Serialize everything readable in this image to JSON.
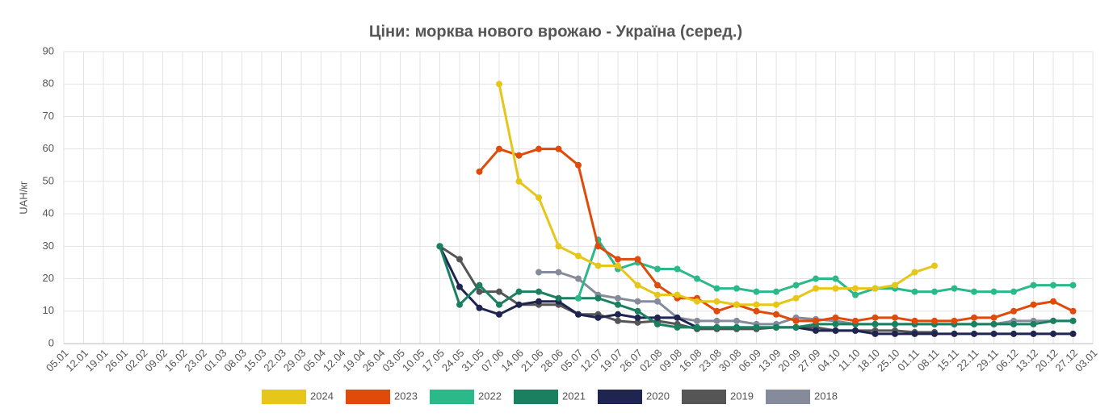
{
  "chart_data": {
    "type": "line",
    "title": "Ціни: морква нового врожаю - Україна (серед.)",
    "y_label": "UAH/кг",
    "categories": [
      "05.01",
      "12.01",
      "19.01",
      "26.01",
      "02.02",
      "09.02",
      "16.02",
      "23.02",
      "01.03",
      "08.03",
      "15.03",
      "22.03",
      "29.03",
      "05.04",
      "12.04",
      "19.04",
      "26.04",
      "03.05",
      "10.05",
      "17.05",
      "24.05",
      "31.05",
      "07.06",
      "14.06",
      "21.06",
      "28.06",
      "05.07",
      "12.07",
      "19.07",
      "26.07",
      "02.08",
      "09.08",
      "16.08",
      "23.08",
      "30.08",
      "06.09",
      "13.09",
      "20.09",
      "27.09",
      "04.10",
      "11.10",
      "18.10",
      "25.10",
      "01.11",
      "08.11",
      "15.11",
      "22.11",
      "29.11",
      "06.12",
      "13.12",
      "20.12",
      "27.12",
      "03.01"
    ],
    "series": [
      {
        "name": "2024",
        "color": "#e6c619",
        "values": [
          null,
          null,
          null,
          null,
          null,
          null,
          null,
          null,
          null,
          null,
          null,
          null,
          null,
          null,
          null,
          null,
          null,
          null,
          null,
          null,
          null,
          null,
          80,
          50,
          45,
          30,
          27,
          24,
          24,
          18,
          15,
          15,
          13,
          13,
          12,
          12,
          12,
          14,
          17,
          17,
          17,
          17,
          18,
          22,
          24,
          null,
          null,
          null,
          null,
          null,
          null,
          null,
          null
        ]
      },
      {
        "name": "2023",
        "color": "#e04a0a",
        "values": [
          null,
          null,
          null,
          null,
          null,
          null,
          null,
          null,
          null,
          null,
          null,
          null,
          null,
          null,
          null,
          null,
          null,
          null,
          null,
          null,
          null,
          53,
          60,
          58,
          60,
          60,
          55,
          30,
          26,
          26,
          18,
          14,
          14,
          10,
          12,
          10,
          9,
          7,
          7,
          8,
          7,
          8,
          8,
          7,
          7,
          7,
          8,
          8,
          10,
          12,
          13,
          10,
          null
        ]
      },
      {
        "name": "2022",
        "color": "#2bb98a",
        "values": [
          null,
          null,
          null,
          null,
          null,
          null,
          null,
          null,
          null,
          null,
          null,
          null,
          null,
          null,
          null,
          null,
          null,
          null,
          null,
          null,
          null,
          null,
          null,
          null,
          null,
          null,
          14,
          32,
          23,
          25,
          23,
          23,
          20,
          17,
          17,
          16,
          16,
          18,
          20,
          20,
          15,
          17,
          17,
          16,
          16,
          17,
          16,
          16,
          16,
          18,
          18,
          18,
          null
        ]
      },
      {
        "name": "2021",
        "color": "#1a8060",
        "values": [
          null,
          null,
          null,
          null,
          null,
          null,
          null,
          null,
          null,
          null,
          null,
          null,
          null,
          null,
          null,
          null,
          null,
          null,
          null,
          30,
          12,
          18,
          12,
          16,
          16,
          14,
          14,
          14,
          12,
          10,
          6,
          5,
          5,
          5,
          5,
          5,
          5,
          5,
          6,
          6,
          6,
          6,
          6,
          6,
          6,
          6,
          6,
          6,
          6,
          6,
          7,
          7,
          null
        ]
      },
      {
        "name": "2020",
        "color": "#1f2550",
        "values": [
          null,
          null,
          null,
          null,
          null,
          null,
          null,
          null,
          null,
          null,
          null,
          null,
          null,
          null,
          null,
          null,
          null,
          null,
          null,
          30,
          17.5,
          11,
          9,
          12,
          13,
          13,
          9,
          8,
          9,
          8,
          8,
          8,
          5,
          5,
          5,
          5,
          5,
          5,
          4,
          4,
          4,
          3,
          3,
          3,
          3,
          3,
          3,
          3,
          3,
          3,
          3,
          3,
          null
        ]
      },
      {
        "name": "2019",
        "color": "#555555",
        "values": [
          null,
          null,
          null,
          null,
          null,
          null,
          null,
          null,
          null,
          null,
          null,
          null,
          null,
          null,
          null,
          null,
          null,
          null,
          null,
          30,
          26,
          16,
          16,
          12,
          12,
          12,
          9,
          9,
          7,
          6.5,
          7,
          6,
          4.5,
          4.5,
          4.5,
          4.5,
          5,
          5,
          5,
          4,
          4,
          4,
          4,
          3.5,
          3.5,
          null,
          null,
          null,
          null,
          null,
          null,
          null,
          null
        ]
      },
      {
        "name": "2018",
        "color": "#868b9c",
        "values": [
          null,
          null,
          null,
          null,
          null,
          null,
          null,
          null,
          null,
          null,
          null,
          null,
          null,
          null,
          null,
          null,
          null,
          null,
          null,
          null,
          null,
          null,
          null,
          null,
          22,
          22,
          20,
          15,
          14,
          13,
          13,
          8,
          7,
          7,
          7,
          6,
          6,
          8,
          7.5,
          7,
          6,
          6,
          6,
          6,
          6,
          6,
          6,
          6,
          7,
          7,
          7,
          7,
          null
        ]
      }
    ],
    "ylim": [
      0,
      90
    ],
    "yticks": [
      0,
      10,
      20,
      30,
      40,
      50,
      60,
      70,
      80,
      90
    ],
    "grid": true,
    "legend": "bottom"
  }
}
